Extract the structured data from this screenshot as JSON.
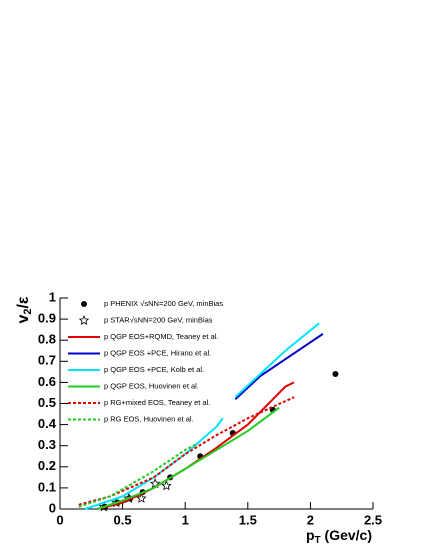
{
  "chart_data": {
    "type": "line",
    "ylabel": {
      "main": "v",
      "sub": "2",
      "rest": "/ε"
    },
    "xlabel": {
      "main": "p",
      "sub": "T",
      "rest": " (Gev/c)"
    },
    "xlim": [
      0,
      2.5
    ],
    "xticks": [
      0,
      0.5,
      1,
      1.5,
      2,
      2.5
    ],
    "ylim": [
      0,
      1
    ],
    "yticks": [
      0,
      0.1,
      0.2,
      0.3,
      0.4,
      0.5,
      0.6,
      0.7,
      0.8,
      0.9,
      1
    ],
    "legend": "top-left",
    "series": [
      {
        "name": "p PHENIX √sNN=200 GeV, minBias",
        "color": "#000000",
        "marker": "circle",
        "x": [
          0.36,
          0.46,
          0.56,
          0.66,
          0.88,
          1.12,
          1.38,
          1.7,
          2.2
        ],
        "values": [
          0.01,
          0.03,
          0.05,
          0.08,
          0.15,
          0.25,
          0.36,
          0.47,
          0.64
        ]
      },
      {
        "name": "p STAR√sNN=200 GeV, minBias",
        "color": "#000000",
        "marker": "star",
        "x": [
          0.35,
          0.45,
          0.55,
          0.65,
          0.76,
          0.85
        ],
        "values": [
          0.01,
          0.03,
          0.05,
          0.05,
          0.12,
          0.11
        ]
      },
      {
        "name": "p  QGP EOS+RQMD, Teaney et al.",
        "color": "#e00000",
        "dash": false,
        "x": [
          0.3,
          0.5,
          0.75,
          1.0,
          1.25,
          1.5,
          1.7,
          1.8,
          1.87
        ],
        "values": [
          0,
          0.03,
          0.1,
          0.19,
          0.29,
          0.4,
          0.52,
          0.58,
          0.6
        ]
      },
      {
        "name": "p QGP EOS +PCE, Hirano et al.",
        "color": "#0000cc",
        "dash": false,
        "x": [
          1.4,
          1.6,
          1.8,
          2.0,
          2.1
        ],
        "values": [
          0.52,
          0.63,
          0.71,
          0.79,
          0.83
        ]
      },
      {
        "name": "p QGP EOS +PCE, Kolb et al.",
        "color": "#00e5ff",
        "dash": false,
        "x": [
          0.2,
          0.5,
          0.75,
          1.0,
          1.25,
          1.3,
          null,
          1.4,
          1.6,
          1.8,
          2.07
        ],
        "values": [
          0,
          0.06,
          0.15,
          0.26,
          0.39,
          0.43,
          null,
          0.53,
          0.64,
          0.75,
          0.88
        ]
      },
      {
        "name": "p QGP EOS, Huovinen et al.",
        "color": "#22cc22",
        "dash": false,
        "x": [
          0.3,
          0.5,
          0.75,
          1.0,
          1.25,
          1.5,
          1.75
        ],
        "values": [
          0,
          0.04,
          0.1,
          0.19,
          0.28,
          0.37,
          0.48
        ]
      },
      {
        "name": "p RG+mixed EOS, Teaney et al.",
        "color": "#e00000",
        "dash": true,
        "x": [
          0.15,
          0.4,
          0.75,
          1.0,
          1.25,
          1.5,
          1.87
        ],
        "values": [
          0.02,
          0.06,
          0.15,
          0.26,
          0.35,
          0.43,
          0.53
        ]
      },
      {
        "name": "p RG EOS, Huovinen et al.",
        "color": "#22cc22",
        "dash": true,
        "x": [
          0.15,
          0.4,
          0.75,
          1.0,
          1.1
        ],
        "values": [
          0.01,
          0.06,
          0.18,
          0.28,
          0.31
        ]
      }
    ]
  }
}
